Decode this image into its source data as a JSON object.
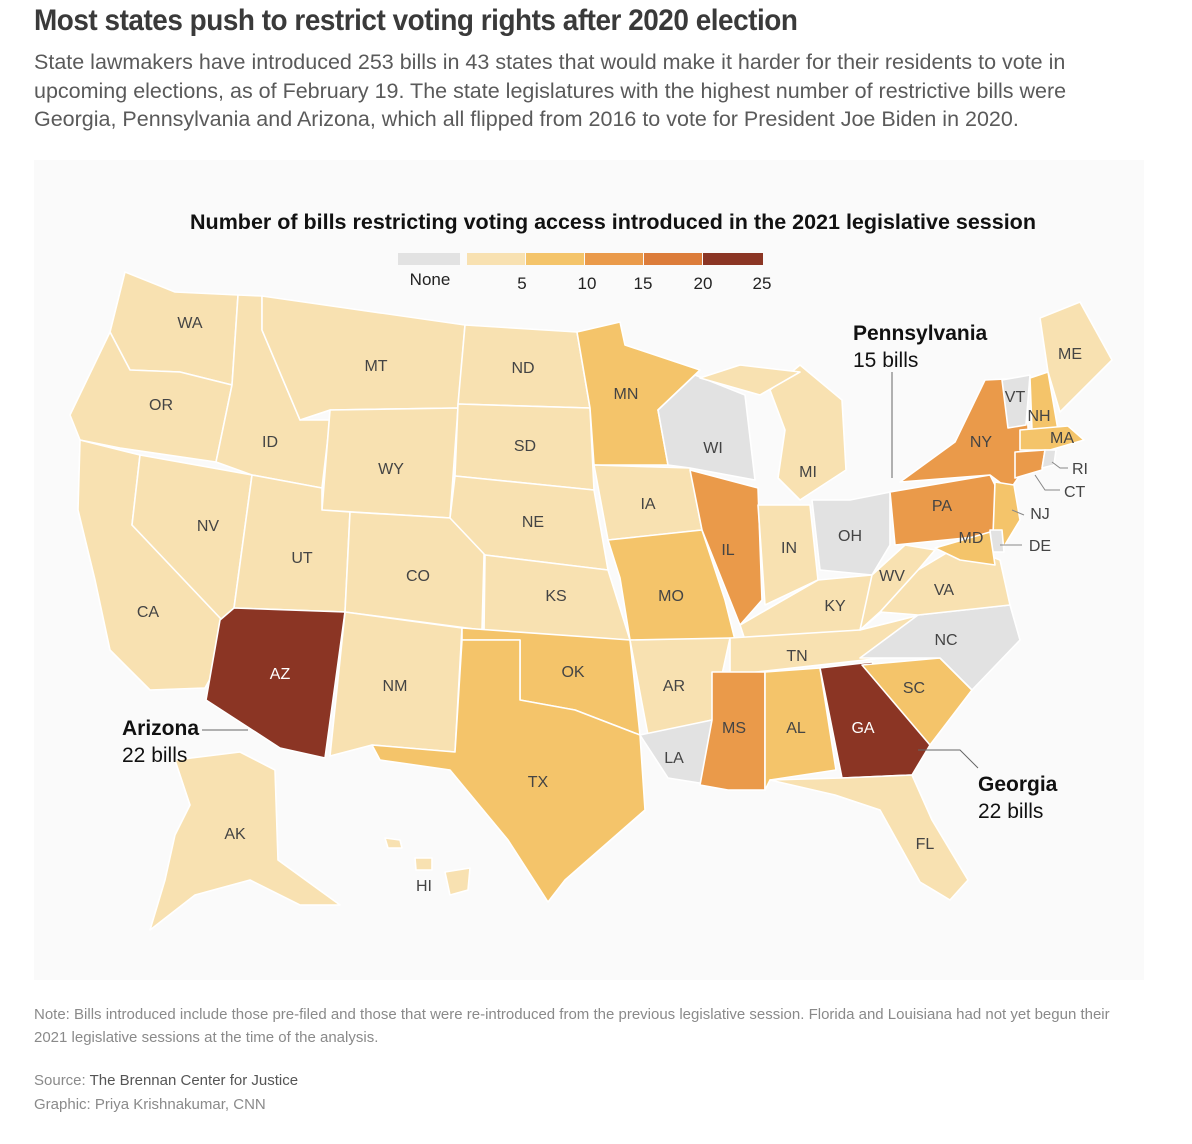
{
  "headline": "Most states push to restrict voting rights after 2020 election",
  "dek": "State lawmakers have introduced 253 bills in 43 states that would make it harder for their residents to vote in upcoming elections, as of February 19. The state legislatures with the highest number of restrictive bills were Georgia, Pennsylvania and Arizona, which all flipped from 2016 to vote for President Joe Biden in 2020.",
  "chart_title": "Number of bills restricting voting access introduced in the 2021 legislative session",
  "legend": {
    "none_label": "None",
    "ticks": [
      "5",
      "10",
      "15",
      "20",
      "25"
    ],
    "colors": {
      "none": "#e2e2e2",
      "b1_5": "#f8e1b1",
      "b5_10": "#f4c46a",
      "b10_15": "#ea9a4a",
      "b15_20": "#dc7c3a",
      "b20_25": "#cc6a35",
      "b20_25_dark": "#8b3524"
    }
  },
  "states": {
    "WA": "WA",
    "OR": "OR",
    "CA": "CA",
    "NV": "NV",
    "ID": "ID",
    "MT": "MT",
    "WY": "WY",
    "UT": "UT",
    "CO": "CO",
    "AZ": "AZ",
    "NM": "NM",
    "ND": "ND",
    "SD": "SD",
    "NE": "NE",
    "KS": "KS",
    "OK": "OK",
    "TX": "TX",
    "MN": "MN",
    "IA": "IA",
    "MO": "MO",
    "AR": "AR",
    "LA": "LA",
    "WI": "WI",
    "IL": "IL",
    "MI": "MI",
    "IN": "IN",
    "OH": "OH",
    "KY": "KY",
    "TN": "TN",
    "MS": "MS",
    "AL": "AL",
    "GA": "GA",
    "FL": "FL",
    "SC": "SC",
    "NC": "NC",
    "VA": "VA",
    "WV": "WV",
    "PA": "PA",
    "NY": "NY",
    "VT": "VT",
    "NH": "NH",
    "ME": "ME",
    "MA": "MA",
    "RI": "RI",
    "CT": "CT",
    "NJ": "NJ",
    "DE": "DE",
    "MD": "MD",
    "AK": "AK",
    "HI": "HI"
  },
  "callouts": {
    "pennsylvania": {
      "name": "Pennsylvania",
      "bills": "15 bills"
    },
    "arizona": {
      "name": "Arizona",
      "bills": "22 bills"
    },
    "georgia": {
      "name": "Georgia",
      "bills": "22 bills"
    }
  },
  "note": "Note: Bills introduced include those pre-filed and those that were re-introduced from the previous legislative session. Florida and Louisiana had not yet begun their 2021 legislative sessions at the time of the analysis.",
  "source_label": "Source:",
  "source": "The Brennan Center for Justice",
  "graphic_credit": "Graphic: Priya Krishnakumar, CNN"
}
